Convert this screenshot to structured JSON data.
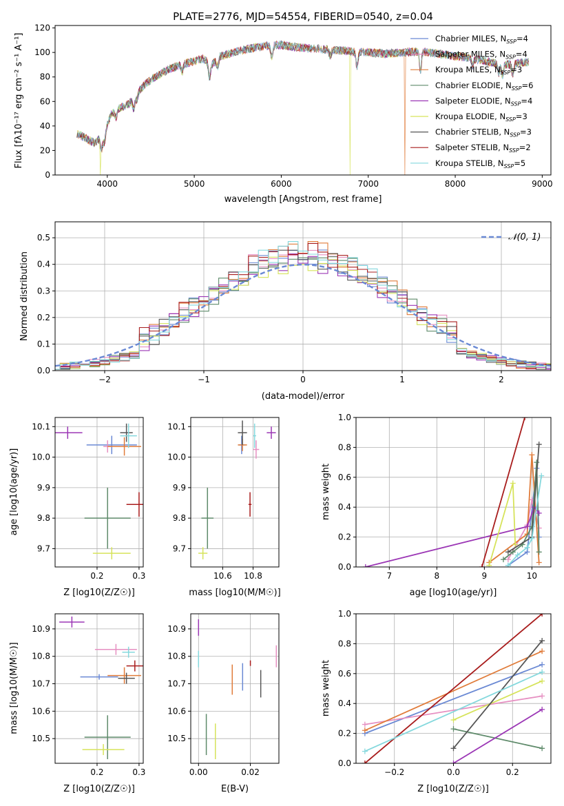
{
  "figure": {
    "title": "PLATE=2776, MJD=54554, FIBERID=0540, z=0.04",
    "colors": [
      "#6a89d4",
      "#e68fc1",
      "#e07b39",
      "#5e8a6a",
      "#9b36b5",
      "#d6e35a",
      "#555555",
      "#a81c1c",
      "#84d8dd"
    ]
  },
  "chart_data": [
    {
      "id": "spectrum",
      "type": "line",
      "title": "PLATE=2776, MJD=54554, FIBERID=0540, z=0.04",
      "xlabel": "wavelength [Angstrom, rest frame]",
      "ylabel": "Flux [fλ10⁻¹⁷ erg cm⁻² s⁻¹ A⁻¹]",
      "xlim": [
        3400,
        9100
      ],
      "ylim": [
        0,
        122
      ],
      "xticks": [
        "4000",
        "5000",
        "6000",
        "7000",
        "8000",
        "9000"
      ],
      "yticks": [
        "0",
        "20",
        "40",
        "60",
        "80",
        "100",
        "120"
      ],
      "legend_position": "top-right",
      "series": [
        {
          "name": "Chabrier MILES, N_SSP=4"
        },
        {
          "name": "Salpeter MILES, N_SSP=4"
        },
        {
          "name": "Kroupa MILES, N_SSP=3"
        },
        {
          "name": "Chabrier ELODIE, N_SSP=6"
        },
        {
          "name": "Salpeter ELODIE, N_SSP=4"
        },
        {
          "name": "Kroupa ELODIE, N_SSP=3"
        },
        {
          "name": "Chabrier STELIB, N_SSP=3"
        },
        {
          "name": "Salpeter STELIB, N_SSP=2"
        },
        {
          "name": "Kroupa STELIB, N_SSP=5"
        }
      ],
      "continuum": {
        "x": [
          3650,
          3750,
          3850,
          3950,
          4050,
          4150,
          4250,
          4350,
          4450,
          4550,
          4700,
          4850,
          5000,
          5100,
          5200,
          5300,
          5500,
          5700,
          5900,
          6000,
          6200,
          6400,
          6600,
          6800,
          7000,
          7200,
          7400,
          7600,
          7800,
          8000,
          8200,
          8400,
          8600,
          8800
        ],
        "y": [
          34,
          30,
          26,
          32,
          50,
          55,
          58,
          68,
          75,
          80,
          86,
          90,
          93,
          95,
          90,
          97,
          101,
          104,
          106,
          106,
          104,
          103,
          102,
          101,
          100,
          99,
          100,
          101,
          99,
          97,
          95,
          92,
          90,
          92
        ]
      },
      "dropouts": [
        {
          "series": "Kroupa ELODIE, N_SSP=3",
          "wavelength": 3920
        },
        {
          "series": "Kroupa ELODIE, N_SSP=3",
          "wavelength": 6790
        },
        {
          "series": "Kroupa MILES, N_SSP=3",
          "wavelength": 7420
        }
      ],
      "legend_labels": [
        "Chabrier MILES, N",
        "Salpeter MILES, N",
        "Kroupa MILES, N",
        "Chabrier ELODIE, N",
        "Salpeter ELODIE, N",
        "Kroupa ELODIE, N",
        "Chabrier STELIB, N",
        "Salpeter STELIB, N",
        "Kroupa STELIB, N"
      ],
      "legend_nssp": [
        "4",
        "4",
        "3",
        "6",
        "4",
        "3",
        "3",
        "2",
        "5"
      ]
    },
    {
      "id": "residuals",
      "type": "histogram",
      "xlabel": "(data-model)/error",
      "ylabel": "Normed distribution",
      "xlim": [
        -2.5,
        2.5
      ],
      "ylim": [
        0,
        0.56
      ],
      "xticks": [
        "−2",
        "−1",
        "0",
        "1",
        "2"
      ],
      "yticks": [
        "0.0",
        "0.1",
        "0.2",
        "0.3",
        "0.4",
        "0.5"
      ],
      "bin_width": 0.1,
      "legend_position": "top-right",
      "legend_label": "𝒩(0, 1)",
      "reference_curve": "standard normal N(0,1)"
    },
    {
      "id": "age-vs-Z",
      "type": "scatter",
      "xlabel": "Z [log10(Z/Z☉)]",
      "ylabel": "age [log10(age/yr)]",
      "xlim": [
        0.1,
        0.31
      ],
      "ylim": [
        9.64,
        10.13
      ],
      "xticks": [
        "0.2",
        "0.3"
      ],
      "yticks": [
        "9.7",
        "9.8",
        "9.9",
        "10.0",
        "10.1"
      ],
      "points": [
        {
          "x": 0.235,
          "y": 10.04,
          "xerr": 0.06,
          "yerr": 0.03
        },
        {
          "x": 0.225,
          "y": 10.035,
          "xerr": 0.01,
          "yerr": 0.02
        },
        {
          "x": 0.265,
          "y": 10.035,
          "xerr": 0.04,
          "yerr": 0.03
        },
        {
          "x": 0.225,
          "y": 9.8,
          "xerr": 0.055,
          "yerr": 0.1
        },
        {
          "x": 0.13,
          "y": 10.08,
          "xerr": 0.035,
          "yerr": 0.02
        },
        {
          "x": 0.235,
          "y": 9.685,
          "xerr": 0.045,
          "yerr": 0.02
        },
        {
          "x": 0.27,
          "y": 10.08,
          "xerr": 0.015,
          "yerr": 0.03
        },
        {
          "x": 0.3,
          "y": 9.845,
          "xerr": 0.03,
          "yerr": 0.04
        },
        {
          "x": 0.275,
          "y": 10.07,
          "xerr": 0.02,
          "yerr": 0.04
        }
      ]
    },
    {
      "id": "age-vs-mass",
      "type": "scatter",
      "xlabel": "mass [log10(M/M☉)]",
      "ylabel": "",
      "xlim": [
        10.39,
        10.97
      ],
      "ylim": [
        9.64,
        10.13
      ],
      "xticks": [
        "10.6",
        "10.8"
      ],
      "yticks": [
        "9.7",
        "9.8",
        "9.9",
        "10.0",
        "10.1"
      ],
      "points": [
        {
          "x": 10.725,
          "y": 10.04,
          "xerr": 0.02,
          "yerr": 0.03
        },
        {
          "x": 10.82,
          "y": 10.025,
          "xerr": 0.02,
          "yerr": 0.03
        },
        {
          "x": 10.73,
          "y": 10.04,
          "xerr": 0.03,
          "yerr": 0.02
        },
        {
          "x": 10.5,
          "y": 9.8,
          "xerr": 0.04,
          "yerr": 0.1
        },
        {
          "x": 10.92,
          "y": 10.08,
          "xerr": 0.03,
          "yerr": 0.02
        },
        {
          "x": 10.47,
          "y": 9.685,
          "xerr": 0.03,
          "yerr": 0.02
        },
        {
          "x": 10.73,
          "y": 10.08,
          "xerr": 0.03,
          "yerr": 0.04
        },
        {
          "x": 10.78,
          "y": 9.845,
          "xerr": 0.01,
          "yerr": 0.04
        },
        {
          "x": 10.81,
          "y": 10.07,
          "xerr": 0.01,
          "yerr": 0.04
        }
      ]
    },
    {
      "id": "mass-weight-vs-age",
      "type": "line",
      "xlabel": "age [log10(age/yr)]",
      "ylabel": "mass weight",
      "xlim": [
        6.3,
        10.4
      ],
      "ylim": [
        0,
        1
      ],
      "xticks": [
        "7",
        "8",
        "9",
        "10"
      ],
      "yticks": [
        "0.0",
        "0.2",
        "0.4",
        "0.6",
        "0.8",
        "1.0"
      ],
      "series": [
        {
          "x": [
            9.5,
            9.9,
            10.1,
            10.15
          ],
          "y": [
            0.01,
            0.1,
            0.66,
            0.2
          ]
        },
        {
          "x": [
            9.5,
            9.9,
            10.0,
            10.15
          ],
          "y": [
            0.05,
            0.28,
            0.45,
            0.26
          ]
        },
        {
          "x": [
            9.1,
            9.9,
            10.0,
            10.15
          ],
          "y": [
            0.03,
            0.22,
            0.75,
            0.03
          ]
        },
        {
          "x": [
            9.4,
            9.6,
            9.8,
            10.0,
            10.1,
            10.15
          ],
          "y": [
            0.05,
            0.1,
            0.15,
            0.27,
            0.7,
            0.1
          ]
        },
        {
          "x": [
            6.5,
            9.9,
            10.05,
            10.15
          ],
          "y": [
            0.0,
            0.27,
            0.4,
            0.36
          ]
        },
        {
          "x": [
            9.1,
            9.6,
            9.65
          ],
          "y": [
            0.01,
            0.56,
            0.15
          ]
        },
        {
          "x": [
            9.5,
            10.0,
            10.15
          ],
          "y": [
            0.1,
            0.2,
            0.82
          ]
        },
        {
          "x": [
            8.95,
            9.85
          ],
          "y": [
            0.0,
            1.0
          ]
        },
        {
          "x": [
            9.5,
            9.7,
            9.9,
            10.0,
            10.2
          ],
          "y": [
            0.01,
            0.08,
            0.13,
            0.19,
            0.61
          ]
        }
      ]
    },
    {
      "id": "mass-vs-Z",
      "type": "scatter",
      "xlabel": "Z [log10(Z/Z☉)]",
      "ylabel": "mass [log10(M/M☉)]",
      "xlim": [
        0.1,
        0.31
      ],
      "ylim": [
        10.41,
        10.955
      ],
      "xticks": [
        "0.2",
        "0.3"
      ],
      "yticks": [
        "10.5",
        "10.6",
        "10.7",
        "10.8",
        "10.9"
      ],
      "points": [
        {
          "x": 0.205,
          "y": 10.725,
          "xerr": 0.045,
          "yerr": 0.01
        },
        {
          "x": 0.245,
          "y": 10.825,
          "xerr": 0.05,
          "yerr": 0.02
        },
        {
          "x": 0.265,
          "y": 10.73,
          "xerr": 0.04,
          "yerr": 0.03
        },
        {
          "x": 0.225,
          "y": 10.505,
          "xerr": 0.055,
          "yerr": 0.08
        },
        {
          "x": 0.14,
          "y": 10.925,
          "xerr": 0.03,
          "yerr": 0.02
        },
        {
          "x": 0.215,
          "y": 10.46,
          "xerr": 0.05,
          "yerr": 0.02
        },
        {
          "x": 0.27,
          "y": 10.72,
          "xerr": 0.02,
          "yerr": 0.02
        },
        {
          "x": 0.29,
          "y": 10.765,
          "xerr": 0.02,
          "yerr": 0.02
        },
        {
          "x": 0.275,
          "y": 10.815,
          "xerr": 0.015,
          "yerr": 0.02
        }
      ]
    },
    {
      "id": "mass-vs-EBV",
      "type": "scatter",
      "xlabel": "E(B-V)",
      "ylabel": "",
      "xlim": [
        -0.003,
        0.031
      ],
      "ylim": [
        10.41,
        10.955
      ],
      "xticks": [
        "0.00",
        "0.02"
      ],
      "yticks": [
        "10.5",
        "10.6",
        "10.7",
        "10.8",
        "10.9"
      ],
      "points": [
        {
          "x": 0.017,
          "y": 10.725,
          "xerr": 0,
          "yerr": 0.05
        },
        {
          "x": 0.03,
          "y": 10.8,
          "xerr": 0,
          "yerr": 0.04
        },
        {
          "x": 0.013,
          "y": 10.715,
          "xerr": 0,
          "yerr": 0.055
        },
        {
          "x": 0.003,
          "y": 10.515,
          "xerr": 0,
          "yerr": 0.075
        },
        {
          "x": 0.0,
          "y": 10.905,
          "xerr": 0,
          "yerr": 0.03
        },
        {
          "x": 0.0065,
          "y": 10.49,
          "xerr": 0,
          "yerr": 0.065
        },
        {
          "x": 0.024,
          "y": 10.7,
          "xerr": 0,
          "yerr": 0.05
        },
        {
          "x": 0.02,
          "y": 10.775,
          "xerr": 0,
          "yerr": 0.01
        },
        {
          "x": 0.0,
          "y": 10.79,
          "xerr": 0,
          "yerr": 0.03
        }
      ]
    },
    {
      "id": "mass-weight-vs-Z",
      "type": "line",
      "xlabel": "Z [log10(Z/Z☉)]",
      "ylabel": "mass weight",
      "xlim": [
        -0.33,
        0.33
      ],
      "ylim": [
        0,
        1
      ],
      "xticks": [
        "−0.2",
        "0.0",
        "0.2"
      ],
      "yticks": [
        "0.0",
        "0.2",
        "0.4",
        "0.6",
        "0.8",
        "1.0"
      ],
      "series": [
        {
          "x": [
            -0.3,
            0.3
          ],
          "y": [
            0.2,
            0.66
          ]
        },
        {
          "x": [
            -0.3,
            0.3
          ],
          "y": [
            0.26,
            0.45
          ]
        },
        {
          "x": [
            -0.3,
            0.3
          ],
          "y": [
            0.22,
            0.75
          ]
        },
        {
          "x": [
            0.0,
            0.3
          ],
          "y": [
            0.23,
            0.1
          ]
        },
        {
          "x": [
            0.0,
            0.3
          ],
          "y": [
            0.0,
            0.36
          ]
        },
        {
          "x": [
            0.0,
            0.3
          ],
          "y": [
            0.29,
            0.55
          ]
        },
        {
          "x": [
            0.0,
            0.3
          ],
          "y": [
            0.1,
            0.82
          ]
        },
        {
          "x": [
            -0.3,
            0.3
          ],
          "y": [
            0.0,
            1.0
          ]
        },
        {
          "x": [
            -0.3,
            0.3
          ],
          "y": [
            0.08,
            0.61
          ]
        }
      ]
    }
  ]
}
